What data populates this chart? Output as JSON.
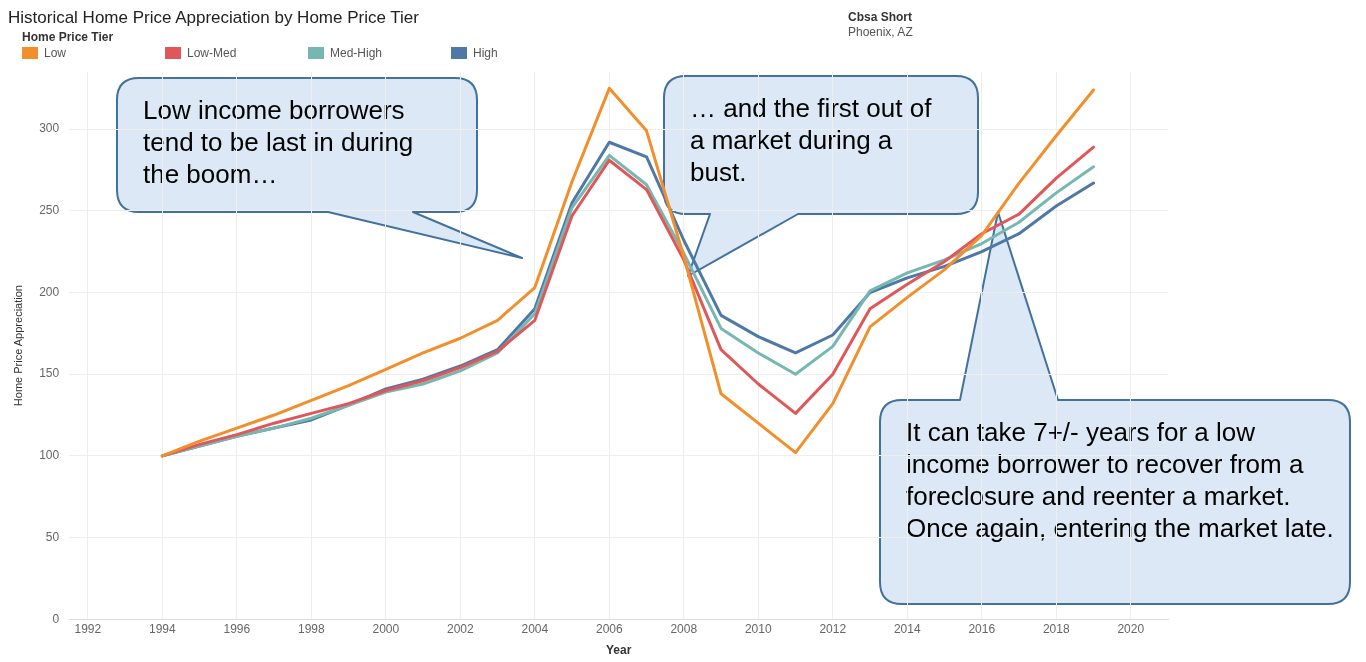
{
  "chart_data": {
    "type": "line",
    "title": "Historical Home Price Appreciation by Home Price Tier",
    "xlabel": "Year",
    "ylabel": "Home Price Appreciation",
    "legend_title": "Home Price Tier",
    "legend": "top left",
    "x": [
      1994,
      1995,
      1996,
      1997,
      1998,
      1999,
      2000,
      2001,
      2002,
      2003,
      2004,
      2005,
      2006,
      2007,
      2008,
      2009,
      2010,
      2011,
      2012,
      2013,
      2014,
      2015,
      2016,
      2017,
      2018,
      2019
    ],
    "series": [
      {
        "name": "Low",
        "color": "#f28e2b",
        "values": [
          100,
          109,
          117,
          125,
          134,
          143,
          153,
          163,
          172,
          183,
          203,
          268,
          325,
          299,
          222,
          138,
          120,
          102,
          132,
          179,
          197,
          214,
          235,
          267,
          296,
          324
        ]
      },
      {
        "name": "Low-Med",
        "color": "#e15759",
        "values": [
          100,
          107,
          113,
          120,
          126,
          132,
          140,
          146,
          154,
          164,
          183,
          247,
          281,
          263,
          220,
          165,
          144,
          126,
          150,
          190,
          205,
          219,
          236,
          248,
          270,
          289
        ]
      },
      {
        "name": "Med-High",
        "color": "#76b7b2",
        "values": [
          100,
          106,
          112,
          117,
          123,
          131,
          139,
          144,
          152,
          163,
          187,
          252,
          284,
          266,
          224,
          178,
          163,
          150,
          167,
          201,
          212,
          220,
          230,
          243,
          261,
          277
        ]
      },
      {
        "name": "High",
        "color": "#4e79a7",
        "values": [
          100,
          106,
          112,
          117,
          122,
          131,
          141,
          147,
          155,
          165,
          190,
          255,
          292,
          283,
          232,
          186,
          173,
          163,
          174,
          200,
          209,
          216,
          225,
          236,
          253,
          267
        ]
      }
    ],
    "xlim": [
      1991.5,
      2021
    ],
    "xticks": [
      1992,
      1994,
      1996,
      1998,
      2000,
      2002,
      2004,
      2006,
      2008,
      2010,
      2012,
      2014,
      2016,
      2018,
      2020
    ],
    "ylim": [
      0,
      335
    ],
    "yticks": [
      0,
      50,
      100,
      150,
      200,
      250,
      300
    ],
    "grid": true,
    "marker": "none",
    "line_style": "solid",
    "annotations": [
      "Low income borrowers tend to be last in during the boom…",
      "… and the first out of a market during a bust.",
      "It can take 7+/- years for a low income borrower to recover from a foreclosure and reenter a market. Once again, entering the market late.",
      "Cbsa Short",
      "Phoenix, AZ"
    ]
  }
}
